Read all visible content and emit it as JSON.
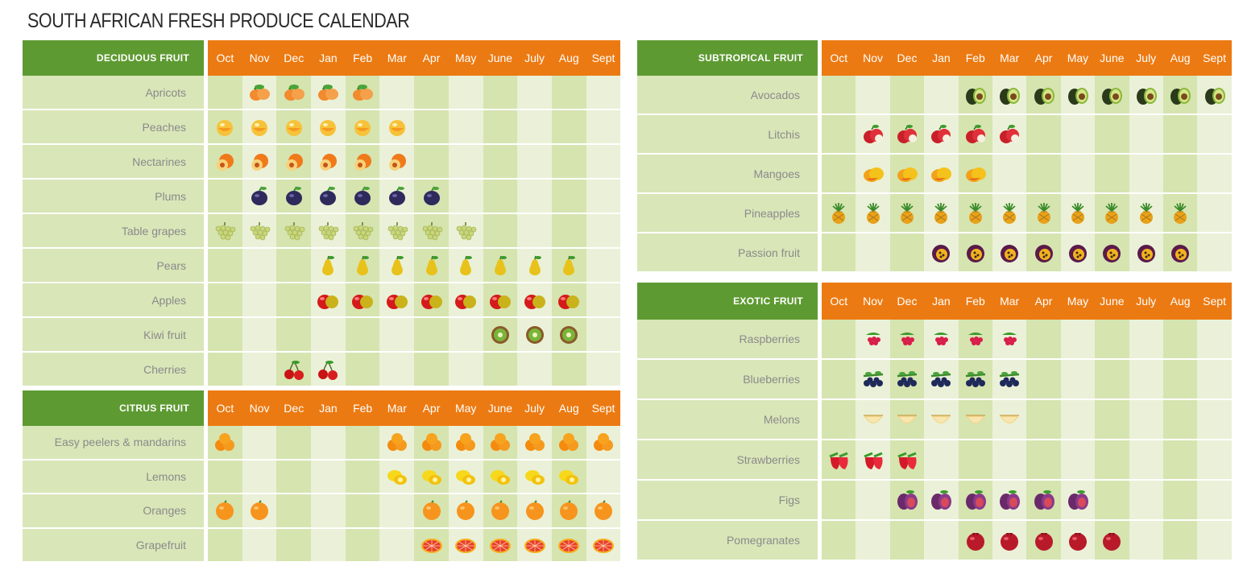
{
  "page": {
    "title": "SOUTH AFRICAN FRESH PRODUCE CALENDAR"
  },
  "months": [
    "Oct",
    "Nov",
    "Dec",
    "Jan",
    "Feb",
    "Mar",
    "Apr",
    "May",
    "June",
    "July",
    "Aug",
    "Sept"
  ],
  "sections": [
    {
      "title": "DECIDUOUS FRUIT",
      "rows": [
        {
          "label": "Apricots",
          "icon": "apricot-icon",
          "available": [
            1,
            2,
            3,
            4
          ]
        },
        {
          "label": "Peaches",
          "icon": "peach-icon",
          "available": [
            0,
            1,
            2,
            3,
            4,
            5
          ]
        },
        {
          "label": "Nectarines",
          "icon": "nectarine-icon",
          "available": [
            0,
            1,
            2,
            3,
            4,
            5
          ]
        },
        {
          "label": "Plums",
          "icon": "plum-icon",
          "available": [
            1,
            2,
            3,
            4,
            5,
            6
          ]
        },
        {
          "label": "Table grapes",
          "icon": "grape-icon",
          "available": [
            0,
            1,
            2,
            3,
            4,
            5,
            6,
            7
          ]
        },
        {
          "label": "Pears",
          "icon": "pear-icon",
          "available": [
            3,
            4,
            5,
            6,
            7,
            8,
            9,
            10
          ]
        },
        {
          "label": "Apples",
          "icon": "apple-icon",
          "available": [
            3,
            4,
            5,
            6,
            7,
            8,
            9,
            10
          ]
        },
        {
          "label": "Kiwi fruit",
          "icon": "kiwi-icon",
          "available": [
            8,
            9,
            10
          ]
        },
        {
          "label": "Cherries",
          "icon": "cherry-icon",
          "available": [
            2,
            3
          ]
        }
      ]
    },
    {
      "title": "CITRUS FRUIT",
      "rows": [
        {
          "label": "Easy peelers & mandarins",
          "icon": "mandarin-icon",
          "available": [
            0,
            5,
            6,
            7,
            8,
            9,
            10,
            11
          ]
        },
        {
          "label": "Lemons",
          "icon": "lemon-icon",
          "available": [
            5,
            6,
            7,
            8,
            9,
            10
          ]
        },
        {
          "label": "Oranges",
          "icon": "orange-icon",
          "available": [
            0,
            1,
            6,
            7,
            8,
            9,
            10,
            11
          ]
        },
        {
          "label": "Grapefruit",
          "icon": "grapefruit-icon",
          "available": [
            6,
            7,
            8,
            9,
            10,
            11
          ]
        }
      ]
    },
    {
      "title": "SUBTROPICAL FRUIT",
      "rows": [
        {
          "label": "Avocados",
          "icon": "avocado-icon",
          "available": [
            4,
            5,
            6,
            7,
            8,
            9,
            10,
            11
          ]
        },
        {
          "label": "Litchis",
          "icon": "litchi-icon",
          "available": [
            1,
            2,
            3,
            4,
            5
          ]
        },
        {
          "label": "Mangoes",
          "icon": "mango-icon",
          "available": [
            1,
            2,
            3,
            4
          ]
        },
        {
          "label": "Pineapples",
          "icon": "pineapple-icon",
          "available": [
            0,
            1,
            2,
            3,
            4,
            5,
            6,
            7,
            8,
            9,
            10
          ]
        },
        {
          "label": "Passion fruit",
          "icon": "passion-fruit-icon",
          "available": [
            3,
            4,
            5,
            6,
            7,
            8,
            9,
            10
          ]
        }
      ]
    },
    {
      "title": "EXOTIC FRUIT",
      "rows": [
        {
          "label": "Raspberries",
          "icon": "raspberry-icon",
          "available": [
            1,
            2,
            3,
            4,
            5
          ]
        },
        {
          "label": "Blueberries",
          "icon": "blueberry-icon",
          "available": [
            1,
            2,
            3,
            4,
            5
          ]
        },
        {
          "label": "Melons",
          "icon": "melon-icon",
          "available": [
            1,
            2,
            3,
            4,
            5
          ]
        },
        {
          "label": "Strawberries",
          "icon": "strawberry-icon",
          "available": [
            0,
            1,
            2
          ]
        },
        {
          "label": "Figs",
          "icon": "fig-icon",
          "available": [
            2,
            3,
            4,
            5,
            6,
            7
          ]
        },
        {
          "label": "Pomegranates",
          "icon": "pomegranate-icon",
          "available": [
            4,
            5,
            6,
            7,
            8
          ]
        }
      ]
    }
  ],
  "colors": {
    "header_green": "#5e9a32",
    "header_orange": "#ec7a12",
    "label_bg": "#d9e6b8",
    "column_dark": "#d6e4b0",
    "column_light": "#eaf1d8"
  }
}
